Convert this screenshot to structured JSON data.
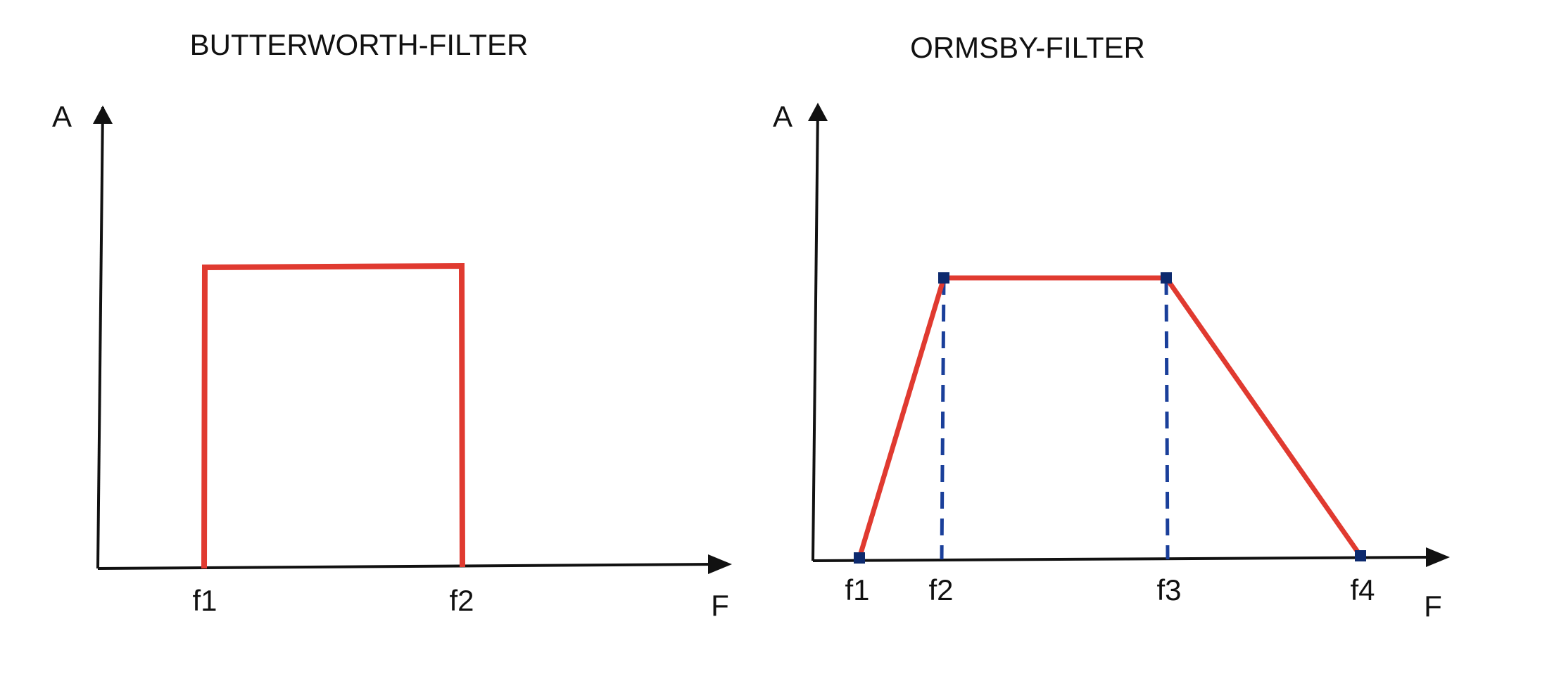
{
  "colors": {
    "axis": "#111111",
    "response": "#e03a30",
    "guide": "#1a3f9a",
    "marker": "#0d2a6e"
  },
  "butterworth": {
    "title": "BUTTERWORTH-FILTER",
    "y_axis_label": "A",
    "x_axis_label": "F",
    "ticks": [
      "f1",
      "f2"
    ]
  },
  "ormsby": {
    "title": "ORMSBY-FILTER",
    "y_axis_label": "A",
    "x_axis_label": "F",
    "ticks": [
      "f1",
      "f2",
      "f3",
      "f4"
    ]
  }
}
